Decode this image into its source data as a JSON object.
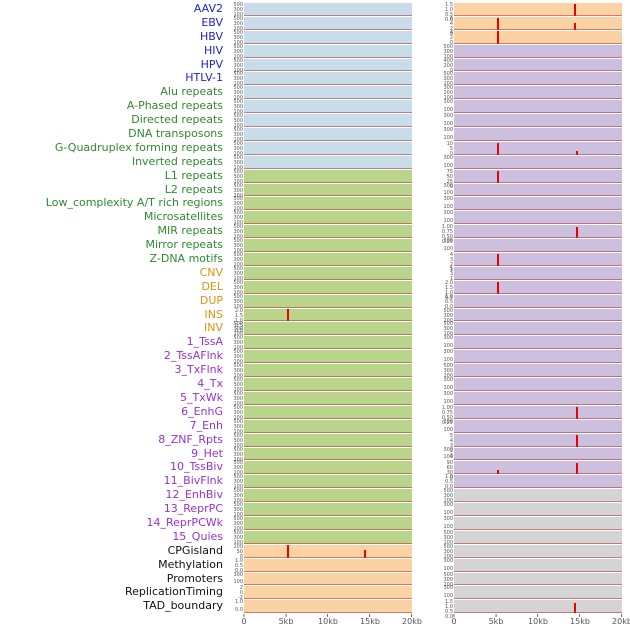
{
  "chart_data": {
    "type": "line",
    "title": "",
    "xlabel": "",
    "x_range_kb": [
      0,
      20
    ],
    "x_ticks": [
      "0",
      "5kb",
      "10kb",
      "15kb",
      "20kb"
    ],
    "grid": false,
    "legend": "none",
    "spike_color": "#ee0000",
    "palette": {
      "blue": "#c9dcea",
      "green": "#b9d48b",
      "orange": "#fbd2a4",
      "purple": "#cdc0de",
      "gray": "#d4d4d4"
    },
    "label_colors": {
      "virus": "#2222cc",
      "repeat": "#2e8b2e",
      "sv": "#e0930f",
      "chromatin": "#9933cc",
      "other": "#111111"
    },
    "rows": [
      {
        "label": "AAV2",
        "group": "virus",
        "left": {
          "bg": "blue",
          "ticks": [
            "500",
            "300",
            "100"
          ],
          "spikes": []
        },
        "right": {
          "bg": "orange",
          "ticks": [
            "1.5",
            "1.0",
            "0.5",
            "0.0"
          ],
          "spikes": [
            {
              "x": 0.72,
              "h": 0.95
            }
          ]
        }
      },
      {
        "label": "EBV",
        "group": "virus",
        "left": {
          "bg": "blue",
          "ticks": [
            "500",
            "300",
            "100"
          ],
          "spikes": []
        },
        "right": {
          "bg": "orange",
          "ticks": [
            "6",
            "4",
            "2",
            "0"
          ],
          "spikes": [
            {
              "x": 0.26,
              "h": 0.9
            },
            {
              "x": 0.72,
              "h": 0.5
            }
          ]
        }
      },
      {
        "label": "HBV",
        "group": "virus",
        "left": {
          "bg": "blue",
          "ticks": [
            "500",
            "300",
            "100"
          ],
          "spikes": []
        },
        "right": {
          "bg": "orange",
          "ticks": [
            "4",
            "2",
            "0"
          ],
          "spikes": [
            {
              "x": 0.26,
              "h": 0.95
            }
          ]
        }
      },
      {
        "label": "HIV",
        "group": "virus",
        "left": {
          "bg": "blue",
          "ticks": [
            "500",
            "300",
            "100"
          ],
          "spikes": []
        },
        "right": {
          "bg": "purple",
          "ticks": [
            "500",
            "300",
            "100"
          ],
          "spikes": []
        }
      },
      {
        "label": "HPV",
        "group": "virus",
        "left": {
          "bg": "blue",
          "ticks": [
            "500",
            "300",
            "100"
          ],
          "spikes": []
        },
        "right": {
          "bg": "purple",
          "ticks": [
            "400",
            "200",
            "0"
          ],
          "spikes": []
        }
      },
      {
        "label": "HTLV-1",
        "group": "virus",
        "left": {
          "bg": "blue",
          "ticks": [
            "500",
            "300",
            "100"
          ],
          "spikes": []
        },
        "right": {
          "bg": "purple",
          "ticks": [
            "500",
            "300",
            "100"
          ],
          "spikes": []
        }
      },
      {
        "label": "Alu repeats",
        "group": "repeat",
        "left": {
          "bg": "blue",
          "ticks": [
            "500",
            "300",
            "100"
          ],
          "spikes": []
        },
        "right": {
          "bg": "purple",
          "ticks": [
            "300",
            "200",
            "100"
          ],
          "spikes": []
        }
      },
      {
        "label": "A-Phased repeats",
        "group": "repeat",
        "left": {
          "bg": "blue",
          "ticks": [
            "500",
            "300",
            "100"
          ],
          "spikes": []
        },
        "right": {
          "bg": "purple",
          "ticks": [
            "300",
            "100"
          ],
          "spikes": []
        }
      },
      {
        "label": "Directed repeats",
        "group": "repeat",
        "left": {
          "bg": "blue",
          "ticks": [
            "500",
            "300",
            "100"
          ],
          "spikes": []
        },
        "right": {
          "bg": "purple",
          "ticks": [
            "300",
            "100"
          ],
          "spikes": []
        }
      },
      {
        "label": "DNA transposons",
        "group": "repeat",
        "left": {
          "bg": "blue",
          "ticks": [
            "500",
            "300",
            "100"
          ],
          "spikes": []
        },
        "right": {
          "bg": "purple",
          "ticks": [
            "300",
            "100"
          ],
          "spikes": []
        }
      },
      {
        "label": "G-Quadruplex forming repeats",
        "group": "repeat",
        "left": {
          "bg": "blue",
          "ticks": [
            "500",
            "300",
            "100"
          ],
          "spikes": []
        },
        "right": {
          "bg": "purple",
          "ticks": [
            "10",
            "5",
            "0"
          ],
          "spikes": [
            {
              "x": 0.26,
              "h": 0.9
            },
            {
              "x": 0.73,
              "h": 0.3
            }
          ]
        }
      },
      {
        "label": "Inverted repeats",
        "group": "repeat",
        "left": {
          "bg": "blue",
          "ticks": [
            "500",
            "300",
            "100"
          ],
          "spikes": []
        },
        "right": {
          "bg": "purple",
          "ticks": [
            "300",
            "100"
          ],
          "spikes": []
        }
      },
      {
        "label": "L1 repeats",
        "group": "repeat",
        "left": {
          "bg": "green",
          "ticks": [
            "500",
            "300",
            "100"
          ],
          "spikes": []
        },
        "right": {
          "bg": "purple",
          "ticks": [
            "75",
            "50",
            "25",
            "0"
          ],
          "spikes": [
            {
              "x": 0.26,
              "h": 0.9
            }
          ]
        }
      },
      {
        "label": "L2 repeats",
        "group": "repeat",
        "left": {
          "bg": "green",
          "ticks": [
            "500",
            "300",
            "100"
          ],
          "spikes": []
        },
        "right": {
          "bg": "purple",
          "ticks": [
            "300",
            "100"
          ],
          "spikes": []
        }
      },
      {
        "label": "Low_complexity A/T rich regions",
        "group": "repeat",
        "left": {
          "bg": "green",
          "ticks": [
            "500",
            "300",
            "100"
          ],
          "spikes": []
        },
        "right": {
          "bg": "purple",
          "ticks": [
            "300",
            "100"
          ],
          "spikes": []
        }
      },
      {
        "label": "Microsatellites",
        "group": "repeat",
        "left": {
          "bg": "green",
          "ticks": [
            "500",
            "300",
            "100"
          ],
          "spikes": []
        },
        "right": {
          "bg": "purple",
          "ticks": [
            "300",
            "100"
          ],
          "spikes": []
        }
      },
      {
        "label": "MIR repeats",
        "group": "repeat",
        "left": {
          "bg": "green",
          "ticks": [
            "500",
            "300",
            "100"
          ],
          "spikes": []
        },
        "right": {
          "bg": "purple",
          "ticks": [
            "1.00",
            "0.75",
            "0.50",
            "0.25"
          ],
          "spikes": [
            {
              "x": 0.73,
              "h": 0.9
            }
          ]
        }
      },
      {
        "label": "Mirror repeats",
        "group": "repeat",
        "left": {
          "bg": "green",
          "ticks": [
            "500",
            "300",
            "100"
          ],
          "spikes": []
        },
        "right": {
          "bg": "purple",
          "ticks": [
            "300",
            "100"
          ],
          "spikes": []
        }
      },
      {
        "label": "Z-DNA motifs",
        "group": "repeat",
        "left": {
          "bg": "green",
          "ticks": [
            "500",
            "300",
            "100"
          ],
          "spikes": []
        },
        "right": {
          "bg": "purple",
          "ticks": [
            "4",
            "3",
            "2",
            "1"
          ],
          "spikes": [
            {
              "x": 0.26,
              "h": 0.9
            }
          ]
        }
      },
      {
        "label": "CNV",
        "group": "sv",
        "left": {
          "bg": "green",
          "ticks": [
            "500",
            "300",
            "100"
          ],
          "spikes": []
        },
        "right": {
          "bg": "purple",
          "ticks": [
            "5",
            "3",
            "1"
          ],
          "spikes": []
        }
      },
      {
        "label": "DEL",
        "group": "sv",
        "left": {
          "bg": "green",
          "ticks": [
            "500",
            "300",
            "100"
          ],
          "spikes": []
        },
        "right": {
          "bg": "purple",
          "ticks": [
            "2.0",
            "1.5",
            "1.0",
            "0.5"
          ],
          "spikes": [
            {
              "x": 0.26,
              "h": 0.9
            }
          ]
        }
      },
      {
        "label": "DUP",
        "group": "sv",
        "left": {
          "bg": "green",
          "ticks": [
            "500",
            "300",
            "100"
          ],
          "spikes": []
        },
        "right": {
          "bg": "purple",
          "ticks": [
            "1.0",
            "0.5",
            "0.0"
          ],
          "spikes": []
        }
      },
      {
        "label": "INS",
        "group": "sv",
        "left": {
          "bg": "green",
          "ticks": [
            "2.0",
            "1.5",
            "1.0",
            "0.5",
            "0.0"
          ],
          "spikes": [
            {
              "x": 0.26,
              "h": 0.95
            }
          ]
        },
        "right": {
          "bg": "purple",
          "ticks": [
            "500",
            "300",
            "100"
          ],
          "spikes": []
        }
      },
      {
        "label": "INV",
        "group": "sv",
        "left": {
          "bg": "green",
          "ticks": [
            "500",
            "300",
            "100"
          ],
          "spikes": []
        },
        "right": {
          "bg": "purple",
          "ticks": [
            "500",
            "300",
            "100"
          ],
          "spikes": []
        }
      },
      {
        "label": "1_TssA",
        "group": "chromatin",
        "left": {
          "bg": "green",
          "ticks": [
            "500",
            "300",
            "100"
          ],
          "spikes": []
        },
        "right": {
          "bg": "purple",
          "ticks": [
            "300",
            "100"
          ],
          "spikes": []
        }
      },
      {
        "label": "2_TssAFlnk",
        "group": "chromatin",
        "left": {
          "bg": "green",
          "ticks": [
            "500",
            "300",
            "100"
          ],
          "spikes": []
        },
        "right": {
          "bg": "purple",
          "ticks": [
            "300",
            "100"
          ],
          "spikes": []
        }
      },
      {
        "label": "3_TxFlnk",
        "group": "chromatin",
        "left": {
          "bg": "green",
          "ticks": [
            "500",
            "300",
            "100"
          ],
          "spikes": []
        },
        "right": {
          "bg": "purple",
          "ticks": [
            "500",
            "300",
            "100"
          ],
          "spikes": []
        }
      },
      {
        "label": "4_Tx",
        "group": "chromatin",
        "left": {
          "bg": "green",
          "ticks": [
            "500",
            "300",
            "100"
          ],
          "spikes": []
        },
        "right": {
          "bg": "purple",
          "ticks": [
            "300",
            "100"
          ],
          "spikes": []
        }
      },
      {
        "label": "5_TxWk",
        "group": "chromatin",
        "left": {
          "bg": "green",
          "ticks": [
            "500",
            "300",
            "100"
          ],
          "spikes": []
        },
        "right": {
          "bg": "purple",
          "ticks": [
            "300",
            "100"
          ],
          "spikes": []
        }
      },
      {
        "label": "6_EnhG",
        "group": "chromatin",
        "left": {
          "bg": "green",
          "ticks": [
            "500",
            "300",
            "100"
          ],
          "spikes": []
        },
        "right": {
          "bg": "purple",
          "ticks": [
            "1.00",
            "0.75",
            "0.50",
            "0.25"
          ],
          "spikes": [
            {
              "x": 0.73,
              "h": 0.9
            }
          ]
        }
      },
      {
        "label": "7_Enh",
        "group": "chromatin",
        "left": {
          "bg": "green",
          "ticks": [
            "500",
            "300",
            "100"
          ],
          "spikes": []
        },
        "right": {
          "bg": "purple",
          "ticks": [
            "300",
            "100"
          ],
          "spikes": []
        }
      },
      {
        "label": "8_ZNF_Rpts",
        "group": "chromatin",
        "left": {
          "bg": "green",
          "ticks": [
            "500",
            "300",
            "100"
          ],
          "spikes": []
        },
        "right": {
          "bg": "purple",
          "ticks": [
            "5",
            "4",
            "3",
            "2",
            "1"
          ],
          "spikes": [
            {
              "x": 0.73,
              "h": 0.9
            }
          ]
        }
      },
      {
        "label": "9_Het",
        "group": "chromatin",
        "left": {
          "bg": "green",
          "ticks": [
            "500",
            "300",
            "100"
          ],
          "spikes": []
        },
        "right": {
          "bg": "purple",
          "ticks": [
            "300",
            "100"
          ],
          "spikes": []
        }
      },
      {
        "label": "10_TssBiv",
        "group": "chromatin",
        "left": {
          "bg": "green",
          "ticks": [
            "500",
            "300",
            "100"
          ],
          "spikes": []
        },
        "right": {
          "bg": "purple",
          "ticks": [
            "90",
            "60",
            "30",
            "0"
          ],
          "spikes": [
            {
              "x": 0.26,
              "h": 0.3
            },
            {
              "x": 0.73,
              "h": 0.9
            }
          ]
        }
      },
      {
        "label": "11_BivFlnk",
        "group": "chromatin",
        "left": {
          "bg": "green",
          "ticks": [
            "500",
            "300",
            "100"
          ],
          "spikes": []
        },
        "right": {
          "bg": "purple",
          "ticks": [
            "1.0",
            "0.5",
            "0.0"
          ],
          "spikes": []
        }
      },
      {
        "label": "12_EnhBiv",
        "group": "chromatin",
        "left": {
          "bg": "green",
          "ticks": [
            "500",
            "300",
            "100"
          ],
          "spikes": []
        },
        "right": {
          "bg": "gray",
          "ticks": [
            "500",
            "300",
            "100"
          ],
          "spikes": []
        }
      },
      {
        "label": "13_ReprPC",
        "group": "chromatin",
        "left": {
          "bg": "green",
          "ticks": [
            "500",
            "300",
            "100"
          ],
          "spikes": []
        },
        "right": {
          "bg": "gray",
          "ticks": [
            "300",
            "100"
          ],
          "spikes": []
        }
      },
      {
        "label": "14_ReprPCWk",
        "group": "chromatin",
        "left": {
          "bg": "green",
          "ticks": [
            "500",
            "300",
            "100"
          ],
          "spikes": []
        },
        "right": {
          "bg": "gray",
          "ticks": [
            "300",
            "100"
          ],
          "spikes": []
        }
      },
      {
        "label": "15_Quies",
        "group": "chromatin",
        "left": {
          "bg": "green",
          "ticks": [
            "500",
            "300",
            "100"
          ],
          "spikes": []
        },
        "right": {
          "bg": "gray",
          "ticks": [
            "500",
            "300",
            "100"
          ],
          "spikes": []
        }
      },
      {
        "label": "CPGisland",
        "group": "other",
        "left": {
          "bg": "orange",
          "ticks": [
            "100",
            "50",
            "0"
          ],
          "spikes": [
            {
              "x": 0.26,
              "h": 0.95
            },
            {
              "x": 0.72,
              "h": 0.6
            }
          ]
        },
        "right": {
          "bg": "gray",
          "ticks": [
            "500",
            "300",
            "100"
          ],
          "spikes": []
        }
      },
      {
        "label": "Methylation",
        "group": "other",
        "left": {
          "bg": "orange",
          "ticks": [
            "1.0",
            "0.5",
            "0.0"
          ],
          "spikes": []
        },
        "right": {
          "bg": "gray",
          "ticks": [
            "300",
            "100"
          ],
          "spikes": []
        }
      },
      {
        "label": "Promoters",
        "group": "other",
        "left": {
          "bg": "orange",
          "ticks": [
            "300",
            "100"
          ],
          "spikes": []
        },
        "right": {
          "bg": "gray",
          "ticks": [
            "500",
            "300",
            "100"
          ],
          "spikes": []
        }
      },
      {
        "label": "ReplicationTiming",
        "group": "other",
        "left": {
          "bg": "orange",
          "ticks": [
            "2",
            "0",
            "-2"
          ],
          "spikes": []
        },
        "right": {
          "bg": "gray",
          "ticks": [
            "300",
            "100"
          ],
          "spikes": []
        }
      },
      {
        "label": "TAD_boundary",
        "group": "other",
        "left": {
          "bg": "orange",
          "ticks": [
            "1.0",
            "0.0"
          ],
          "spikes": []
        },
        "right": {
          "bg": "gray",
          "ticks": [
            "1.5",
            "1.0",
            "0.5",
            "0.0"
          ],
          "spikes": [
            {
              "x": 0.72,
              "h": 0.8
            }
          ]
        }
      }
    ]
  }
}
